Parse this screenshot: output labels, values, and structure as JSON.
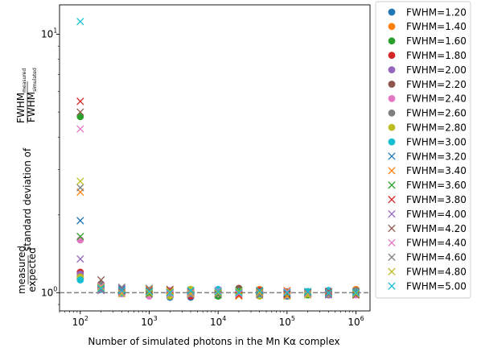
{
  "chart_data": {
    "type": "scatter",
    "xlabel": "Number of simulated photons in the Mn Kα complex",
    "ylabel_main": "standard deviation of ",
    "ylabel_frac_num": "FWHM",
    "ylabel_frac_num_sub": "measured",
    "ylabel_frac_den": "FWHM",
    "ylabel_frac_den_sub": "simulated",
    "ylabel_pre_num": "measured",
    "ylabel_pre_den": "expected",
    "x_scale": "log",
    "y_scale": "log",
    "xlim": [
      50,
      1600000
    ],
    "ylim": [
      0.85,
      13
    ],
    "x_ticks": [
      {
        "value": 100,
        "base": "10",
        "exp": "2"
      },
      {
        "value": 1000,
        "base": "10",
        "exp": "3"
      },
      {
        "value": 10000,
        "base": "10",
        "exp": "4"
      },
      {
        "value": 100000,
        "base": "10",
        "exp": "5"
      },
      {
        "value": 1000000,
        "base": "10",
        "exp": "6"
      }
    ],
    "y_ticks": [
      {
        "value": 1,
        "base": "10",
        "exp": "0"
      },
      {
        "value": 10,
        "base": "10",
        "exp": "1"
      }
    ],
    "reference_line": {
      "y": 1.0,
      "style": "dashed",
      "color": "#808080"
    },
    "x": [
      100,
      200,
      400,
      1000,
      2000,
      4000,
      10000,
      20000,
      40000,
      100000,
      200000,
      400000,
      1000000
    ],
    "series": [
      {
        "name": "FWHM=1.20",
        "marker": "o",
        "color": "#1f77b4",
        "values": [
          1.13,
          1.07,
          0.99,
          1.0,
          0.96,
          0.96,
          0.99,
          1.01,
          0.98,
          0.97,
          1.0,
          1.02,
          0.99
        ]
      },
      {
        "name": "FWHM=1.40",
        "marker": "o",
        "color": "#ff7f0e",
        "values": [
          1.16,
          1.04,
          1.01,
          1.0,
          0.99,
          1.03,
          1.02,
          0.99,
          1.03,
          0.99,
          1.0,
          1.0,
          1.03
        ]
      },
      {
        "name": "FWHM=1.60",
        "marker": "o",
        "color": "#2ca02c",
        "values": [
          4.8,
          1.05,
          1.02,
          0.98,
          0.99,
          0.98,
          0.97,
          1.01,
          1.0,
          1.0,
          0.98,
          1.01,
          1.01
        ]
      },
      {
        "name": "FWHM=1.80",
        "marker": "o",
        "color": "#d62728",
        "values": [
          1.2,
          1.06,
          1.0,
          1.01,
          1.0,
          0.97,
          1.01,
          1.0,
          1.02,
          0.99,
          1.01,
          1.0,
          1.0
        ]
      },
      {
        "name": "FWHM=2.00",
        "marker": "o",
        "color": "#9467bd",
        "values": [
          1.18,
          1.03,
          1.0,
          0.98,
          1.01,
          1.0,
          1.0,
          1.02,
          0.99,
          1.0,
          0.99,
          0.98,
          1.0
        ]
      },
      {
        "name": "FWHM=2.20",
        "marker": "o",
        "color": "#8c564b",
        "values": [
          1.14,
          1.05,
          1.01,
          1.02,
          0.99,
          1.01,
          1.02,
          1.04,
          1.01,
          1.0,
          1.01,
          0.99,
          1.01
        ]
      },
      {
        "name": "FWHM=2.40",
        "marker": "o",
        "color": "#e377c2",
        "values": [
          1.6,
          1.04,
          0.99,
          0.97,
          1.02,
          1.02,
          0.99,
          1.0,
          1.0,
          0.98,
          1.0,
          1.01,
          0.98
        ]
      },
      {
        "name": "FWHM=2.60",
        "marker": "o",
        "color": "#7f7f7f",
        "values": [
          1.15,
          1.08,
          1.02,
          1.01,
          0.98,
          0.99,
          1.01,
          0.99,
          1.0,
          1.01,
          0.99,
          1.0,
          1.02
        ]
      },
      {
        "name": "FWHM=2.80",
        "marker": "o",
        "color": "#bcbd22",
        "values": [
          1.15,
          1.04,
          1.0,
          1.0,
          0.97,
          1.03,
          1.0,
          1.0,
          0.97,
          1.0,
          0.99,
          0.99,
          1.0
        ]
      },
      {
        "name": "FWHM=3.00",
        "marker": "o",
        "color": "#17becf",
        "values": [
          1.12,
          1.03,
          1.0,
          1.01,
          1.0,
          1.0,
          1.03,
          1.01,
          0.99,
          1.0,
          1.01,
          1.02,
          1.0
        ]
      },
      {
        "name": "FWHM=3.20",
        "marker": "x",
        "color": "#1f77b4",
        "values": [
          1.9,
          1.06,
          1.03,
          1.01,
          1.0,
          1.0,
          0.99,
          1.0,
          1.01,
          0.99,
          1.0,
          1.0,
          0.99
        ]
      },
      {
        "name": "FWHM=3.40",
        "marker": "x",
        "color": "#ff7f0e",
        "values": [
          2.45,
          1.02,
          1.0,
          1.03,
          1.02,
          0.99,
          1.0,
          0.97,
          1.02,
          1.02,
          0.99,
          0.99,
          1.0
        ]
      },
      {
        "name": "FWHM=3.60",
        "marker": "x",
        "color": "#2ca02c",
        "values": [
          1.65,
          1.04,
          1.01,
          0.99,
          1.0,
          1.01,
          0.98,
          1.02,
          0.99,
          1.0,
          1.01,
          1.0,
          0.99
        ]
      },
      {
        "name": "FWHM=3.80",
        "marker": "x",
        "color": "#d62728",
        "values": [
          5.5,
          1.05,
          1.02,
          1.0,
          1.01,
          1.0,
          1.01,
          0.98,
          1.0,
          0.98,
          1.0,
          1.01,
          0.98
        ]
      },
      {
        "name": "FWHM=4.00",
        "marker": "x",
        "color": "#9467bd",
        "values": [
          1.35,
          1.02,
          1.04,
          1.01,
          0.99,
          0.98,
          1.0,
          1.01,
          0.99,
          1.0,
          0.99,
          0.98,
          0.99
        ]
      },
      {
        "name": "FWHM=4.20",
        "marker": "x",
        "color": "#8c564b",
        "values": [
          5.0,
          1.12,
          1.01,
          1.02,
          1.03,
          0.99,
          0.99,
          1.0,
          1.01,
          0.99,
          1.0,
          1.0,
          0.98
        ]
      },
      {
        "name": "FWHM=4.40",
        "marker": "x",
        "color": "#e377c2",
        "values": [
          4.3,
          1.06,
          1.0,
          1.0,
          0.99,
          1.0,
          1.02,
          0.99,
          1.0,
          1.01,
          0.99,
          1.0,
          1.0
        ]
      },
      {
        "name": "FWHM=4.60",
        "marker": "x",
        "color": "#7f7f7f",
        "values": [
          2.55,
          1.03,
          1.05,
          1.04,
          1.0,
          1.01,
          0.99,
          1.0,
          0.98,
          1.0,
          1.0,
          0.99,
          1.01
        ]
      },
      {
        "name": "FWHM=4.80",
        "marker": "x",
        "color": "#bcbd22",
        "values": [
          2.7,
          1.05,
          0.99,
          1.0,
          1.01,
          0.99,
          1.0,
          1.01,
          1.0,
          0.97,
          0.98,
          1.0,
          0.99
        ]
      },
      {
        "name": "FWHM=5.00",
        "marker": "x",
        "color": "#17becf",
        "values": [
          11.2,
          1.04,
          1.02,
          1.01,
          1.0,
          1.02,
          1.01,
          1.0,
          1.02,
          1.0,
          1.01,
          1.0,
          1.0
        ]
      }
    ],
    "grid": false,
    "legend_position": "outside-right"
  }
}
